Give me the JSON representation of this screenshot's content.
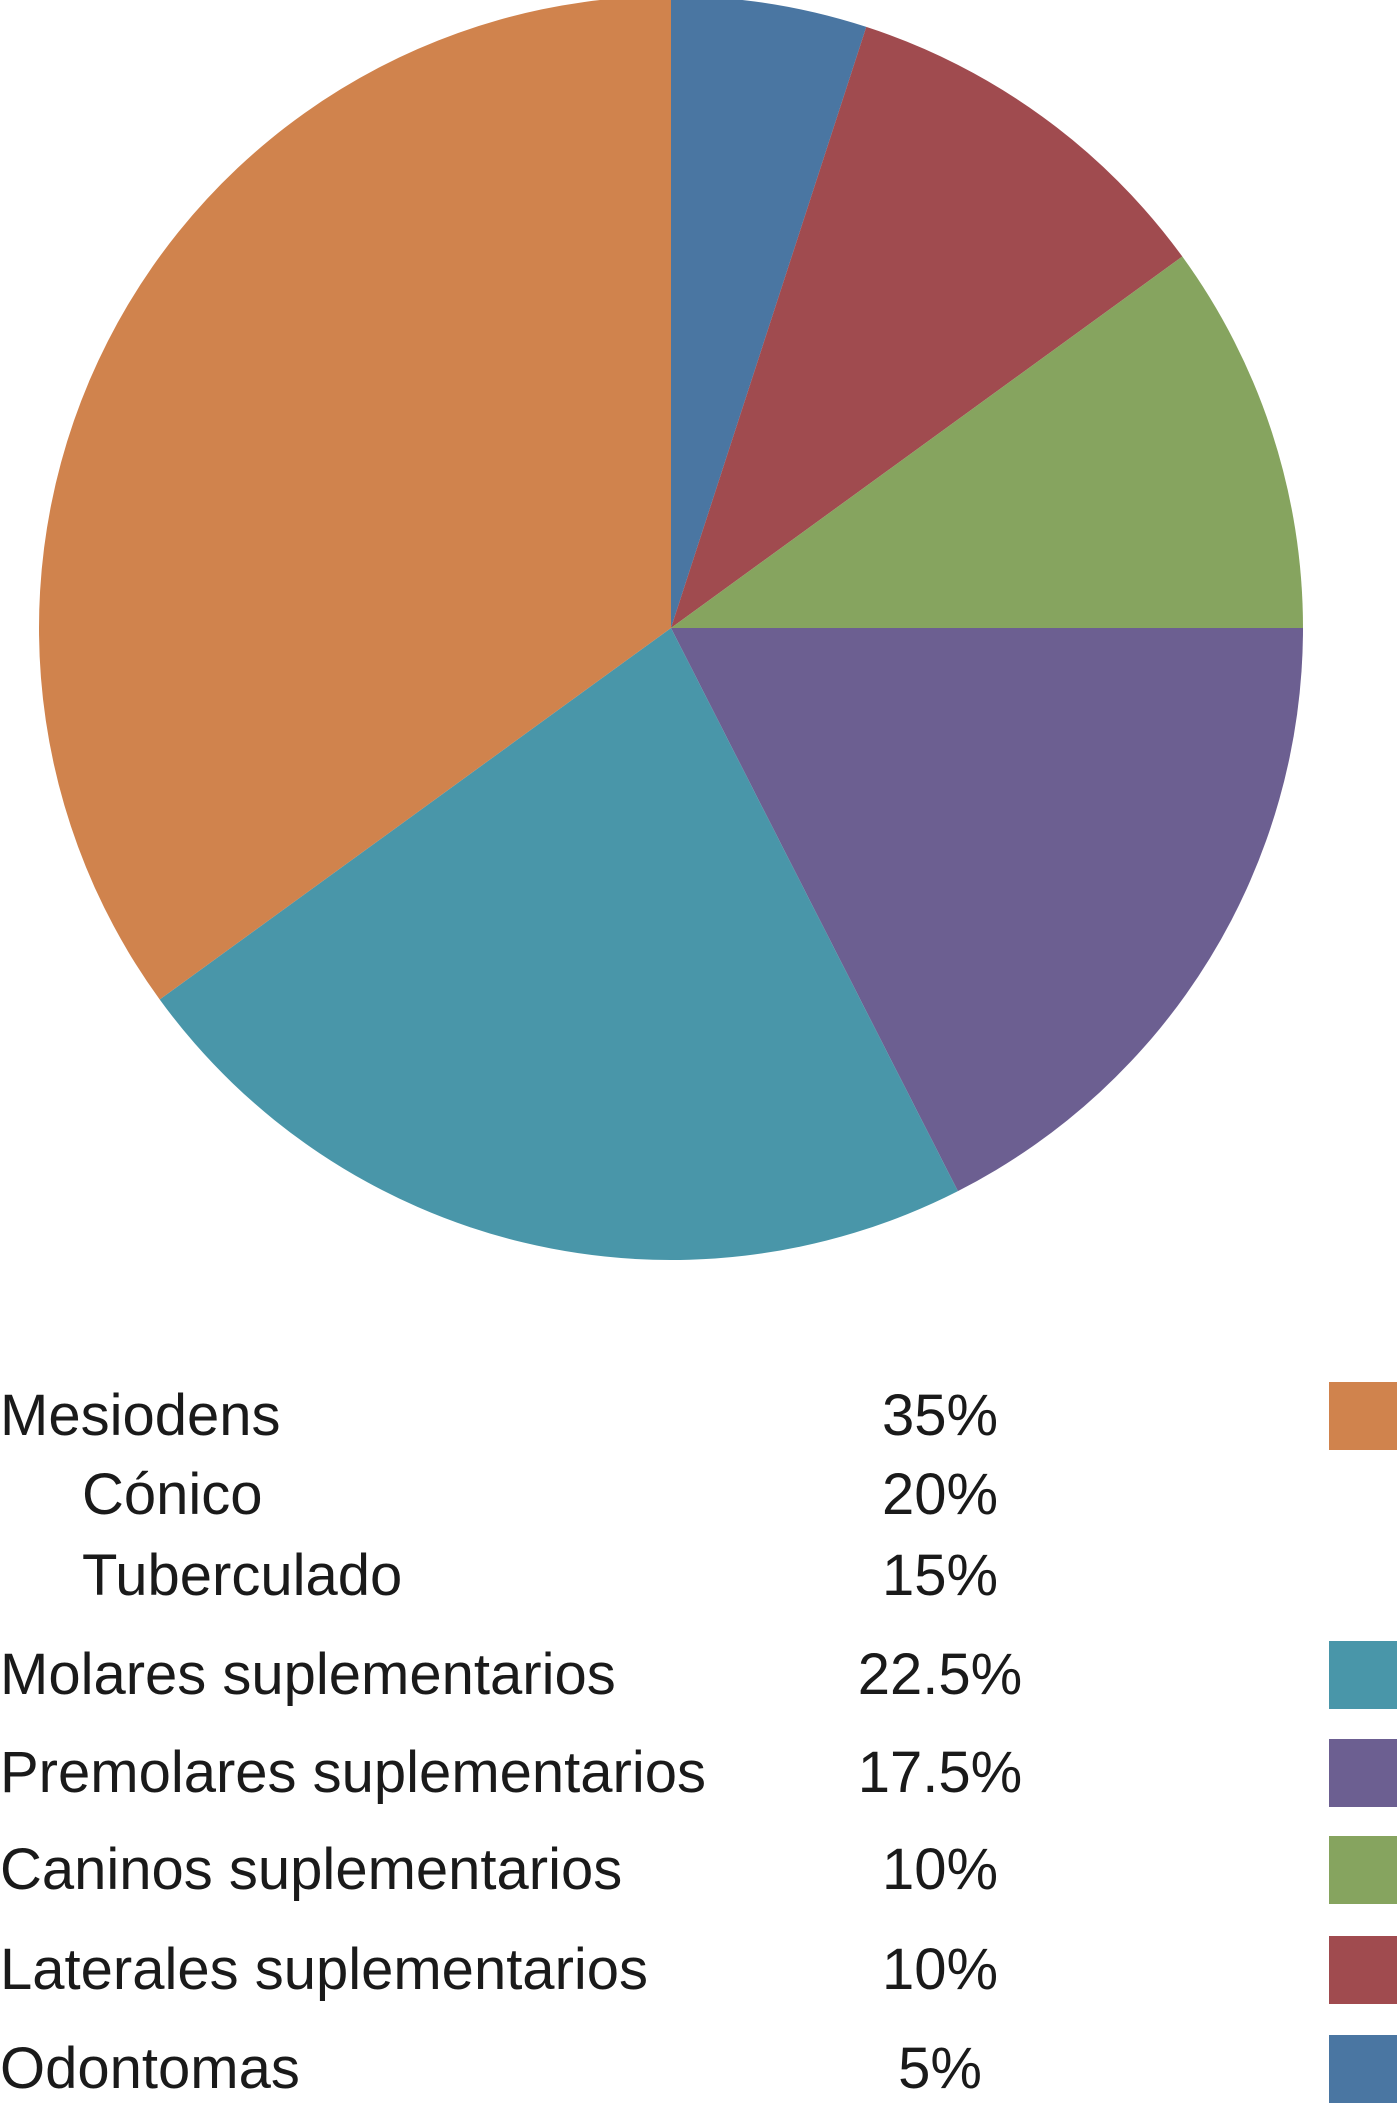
{
  "chart_data": {
    "type": "pie",
    "start_angle": "12 o'clock",
    "direction": "clockwise",
    "slices": [
      {
        "label": "Odontomas",
        "value": 5,
        "value_label": "5%",
        "color": "#4a76a2"
      },
      {
        "label": "Laterales suplementarios",
        "value": 10,
        "value_label": "10%",
        "color": "#a04b4f"
      },
      {
        "label": "Caninos suplementarios",
        "value": 10,
        "value_label": "10%",
        "color": "#86a45f"
      },
      {
        "label": "Premolares suplementarios",
        "value": 17.5,
        "value_label": "17.5%",
        "color": "#6c5f91"
      },
      {
        "label": "Molares suplementarios",
        "value": 22.5,
        "value_label": "22.5%",
        "color": "#4996a9"
      },
      {
        "label": "Mesiodens",
        "value": 35,
        "value_label": "35%",
        "color": "#d0834d"
      }
    ]
  },
  "legend": {
    "rows": [
      {
        "label": "Mesiodens",
        "value": "35%",
        "color": "#d0834d",
        "sub": false
      },
      {
        "label": "Cónico",
        "value": "20%",
        "color": "",
        "sub": true
      },
      {
        "label": "Tuberculado",
        "value": "15%",
        "color": "",
        "sub": true
      },
      {
        "label": "Molares suplementarios",
        "value": "22.5%",
        "color": "#4996a9",
        "sub": false
      },
      {
        "label": "Premolares suplementarios",
        "value": "17.5%",
        "color": "#6c5f91",
        "sub": false
      },
      {
        "label": "Caninos suplementarios",
        "value": "10%",
        "color": "#86a45f",
        "sub": false
      },
      {
        "label": "Laterales suplementarios",
        "value": "10%",
        "color": "#a04b4f",
        "sub": false
      },
      {
        "label": "Odontomas",
        "value": "5%",
        "color": "#4a76a2",
        "sub": false
      }
    ]
  }
}
